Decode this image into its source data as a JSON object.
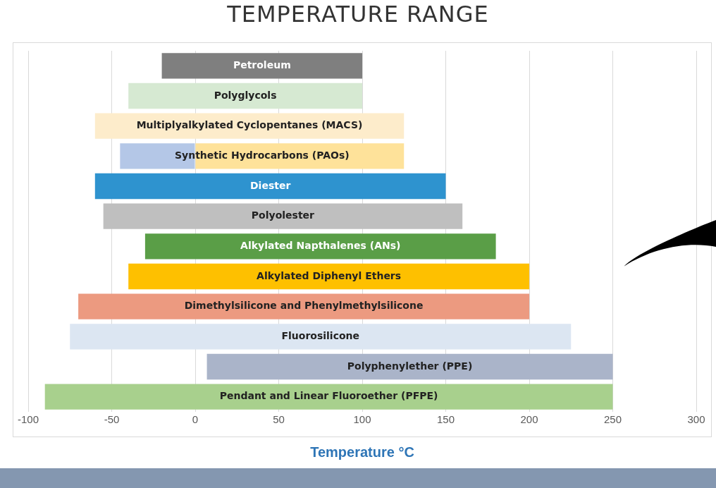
{
  "chart_data": {
    "type": "bar",
    "orientation": "horizontal",
    "title": "TEMPERATURE RANGE",
    "xlabel": "Temperature °C",
    "categories": [
      "Petroleum",
      "Polyglycols",
      "Multiplyalkylated Cyclopentanes (MACS)",
      "Synthetic Hydrocarbons (PAOs)",
      "Diester",
      "Polyolester",
      "Alkylated Napthalenes (ANs)",
      "Alkylated Diphenyl Ethers",
      "Dimethylsilicone and Phenylmethylsilicone",
      "Fluorosilicone",
      "Polyphenylether (PPE)",
      "Pendant and Linear Fluoroether (PFPE)"
    ],
    "series": [
      {
        "base": [
          -20,
          -40,
          -60,
          -45,
          -60,
          -55,
          -30,
          -40,
          -70,
          -75,
          7,
          -90
        ],
        "values": [
          120,
          140,
          185,
          45,
          210,
          215,
          210,
          240,
          270,
          300,
          243,
          340
        ],
        "colors": [
          "#7f7f7f",
          "#d6e9d2",
          "#fdeccb",
          "#b4c7e7",
          "#2e93cf",
          "#bfbfbf",
          "#5a9e47",
          "#fec000",
          "#ec9a80",
          "#dce6f2",
          "#aab4c9",
          "#a8d08d"
        ]
      },
      {
        "values": [
          null,
          null,
          null,
          125,
          null,
          null,
          null,
          null,
          null,
          null,
          null,
          null
        ],
        "base": [
          null,
          null,
          null,
          0,
          null,
          null,
          null,
          null,
          null,
          null,
          null,
          null
        ],
        "color": "#fee29a"
      }
    ],
    "xlim": [
      -100,
      300
    ],
    "xticks": [
      -100,
      -50,
      0,
      50,
      100,
      150,
      200,
      250,
      300
    ],
    "grid": "x",
    "tick_labels": "x",
    "legend": false
  }
}
